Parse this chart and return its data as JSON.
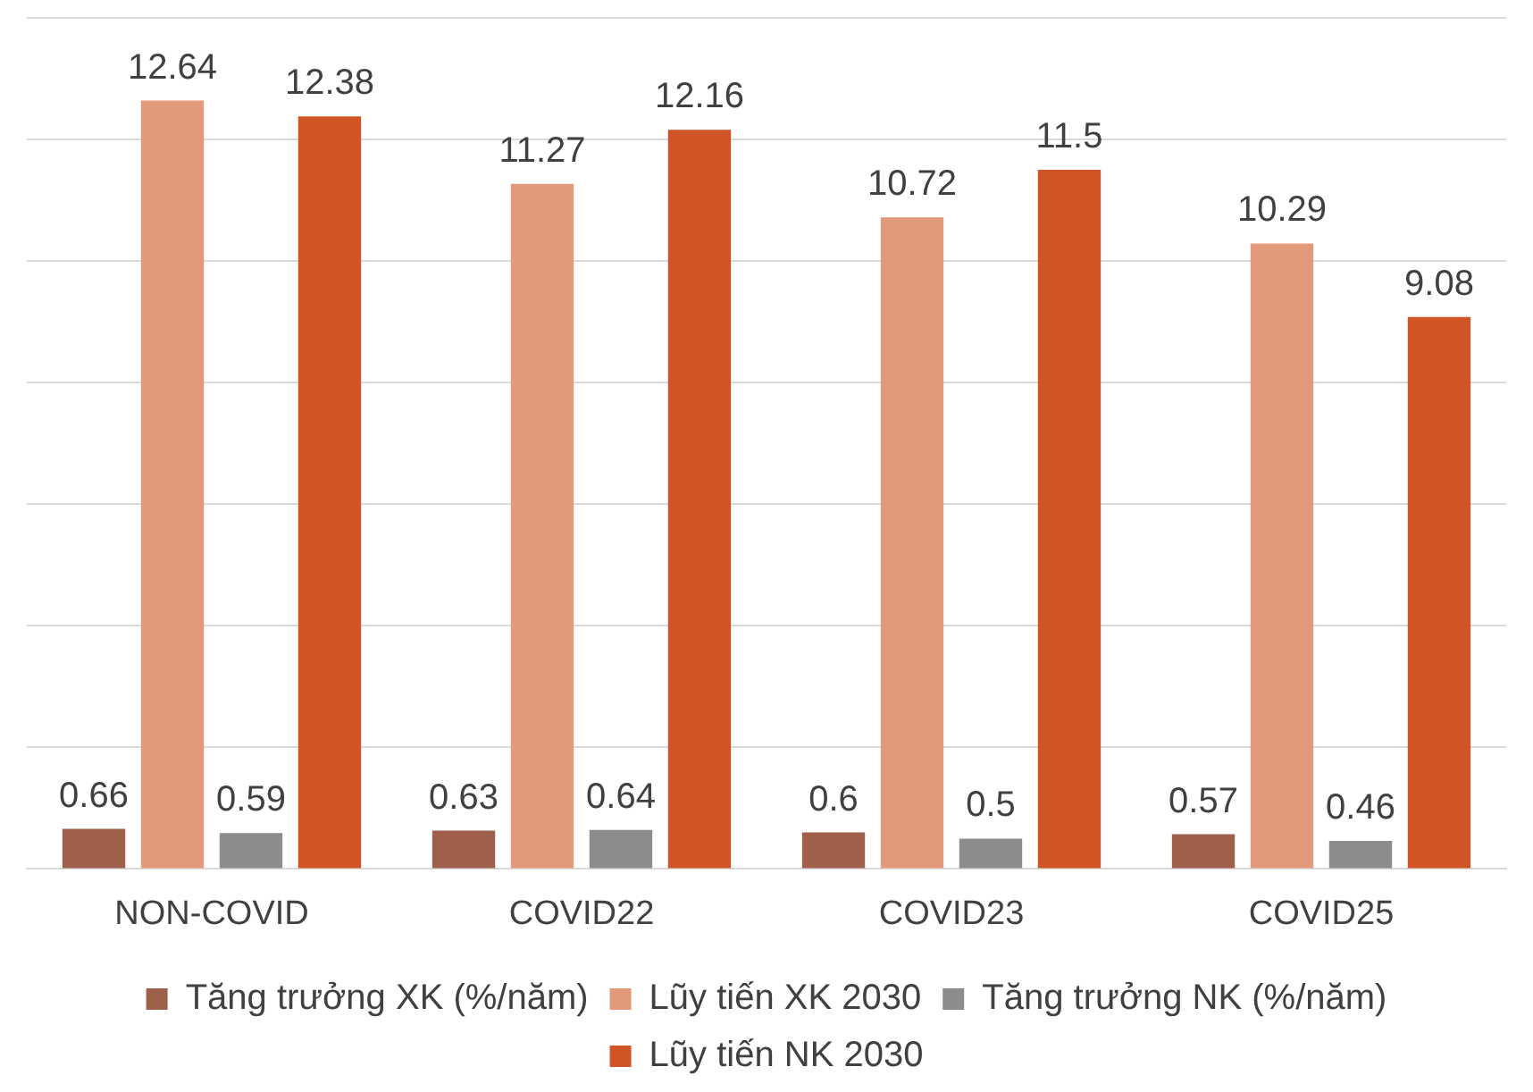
{
  "chart_data": {
    "type": "bar",
    "categories": [
      "NON-COVID",
      "COVID22",
      "COVID23",
      "COVID25"
    ],
    "series": [
      {
        "name": "Tăng trưởng XK (%/năm)",
        "color": "#9e5f4b",
        "values": [
          0.66,
          0.63,
          0.6,
          0.57
        ]
      },
      {
        "name": "Lũy tiến XK 2030",
        "color": "#e3997b",
        "values": [
          12.64,
          11.27,
          10.72,
          10.29
        ]
      },
      {
        "name": "Tăng trưởng NK (%/năm)",
        "color": "#8c8c8c",
        "values": [
          0.59,
          0.64,
          0.5,
          0.46
        ]
      },
      {
        "name": "Lũy tiến NK 2030",
        "color": "#d05426",
        "values": [
          12.38,
          12.16,
          11.5,
          9.08
        ]
      }
    ],
    "ylim": [
      0,
      14
    ],
    "yticks": [
      {
        "value": 0,
        "label": null
      },
      {
        "value": 2,
        "label": null
      },
      {
        "value": 4,
        "label": null
      },
      {
        "value": 6,
        "label": null
      },
      {
        "value": 8,
        "label": null
      },
      {
        "value": 10,
        "label": null
      },
      {
        "value": 12,
        "label": null
      },
      {
        "value": 14,
        "label": null
      }
    ],
    "tick_labels": "x",
    "grid": "y",
    "legend": "bottom",
    "data_labels": true
  }
}
